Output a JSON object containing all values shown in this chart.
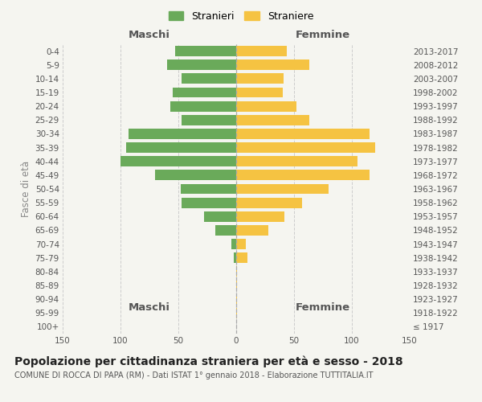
{
  "age_groups": [
    "100+",
    "95-99",
    "90-94",
    "85-89",
    "80-84",
    "75-79",
    "70-74",
    "65-69",
    "60-64",
    "55-59",
    "50-54",
    "45-49",
    "40-44",
    "35-39",
    "30-34",
    "25-29",
    "20-24",
    "15-19",
    "10-14",
    "5-9",
    "0-4"
  ],
  "birth_years": [
    "≤ 1917",
    "1918-1922",
    "1923-1927",
    "1928-1932",
    "1933-1937",
    "1938-1942",
    "1943-1947",
    "1948-1952",
    "1953-1957",
    "1958-1962",
    "1963-1967",
    "1968-1972",
    "1973-1977",
    "1978-1982",
    "1983-1987",
    "1988-1992",
    "1993-1997",
    "1998-2002",
    "2003-2007",
    "2008-2012",
    "2013-2017"
  ],
  "maschi": [
    0,
    0,
    0,
    0,
    0,
    2,
    4,
    18,
    28,
    47,
    48,
    70,
    100,
    95,
    93,
    47,
    57,
    55,
    47,
    60,
    53
  ],
  "femmine": [
    0,
    1,
    1,
    1,
    1,
    10,
    8,
    28,
    42,
    57,
    80,
    115,
    105,
    120,
    115,
    63,
    52,
    40,
    41,
    63,
    44
  ],
  "maschi_color": "#6aaa5a",
  "femmine_color": "#f5c342",
  "background_color": "#f5f5f0",
  "grid_color": "#cccccc",
  "bar_height": 0.75,
  "xlim": 150,
  "title": "Popolazione per cittadinanza straniera per età e sesso - 2018",
  "subtitle": "COMUNE DI ROCCA DI PAPA (RM) - Dati ISTAT 1° gennaio 2018 - Elaborazione TUTTITALIA.IT",
  "xlabel_left": "Maschi",
  "xlabel_right": "Femmine",
  "ylabel_left": "Fasce di età",
  "legend_maschi": "Stranieri",
  "legend_femmine": "Straniere",
  "title_fontsize": 10,
  "subtitle_fontsize": 7,
  "label_fontsize": 8.5,
  "tick_fontsize": 7.5,
  "legend_fontsize": 9
}
